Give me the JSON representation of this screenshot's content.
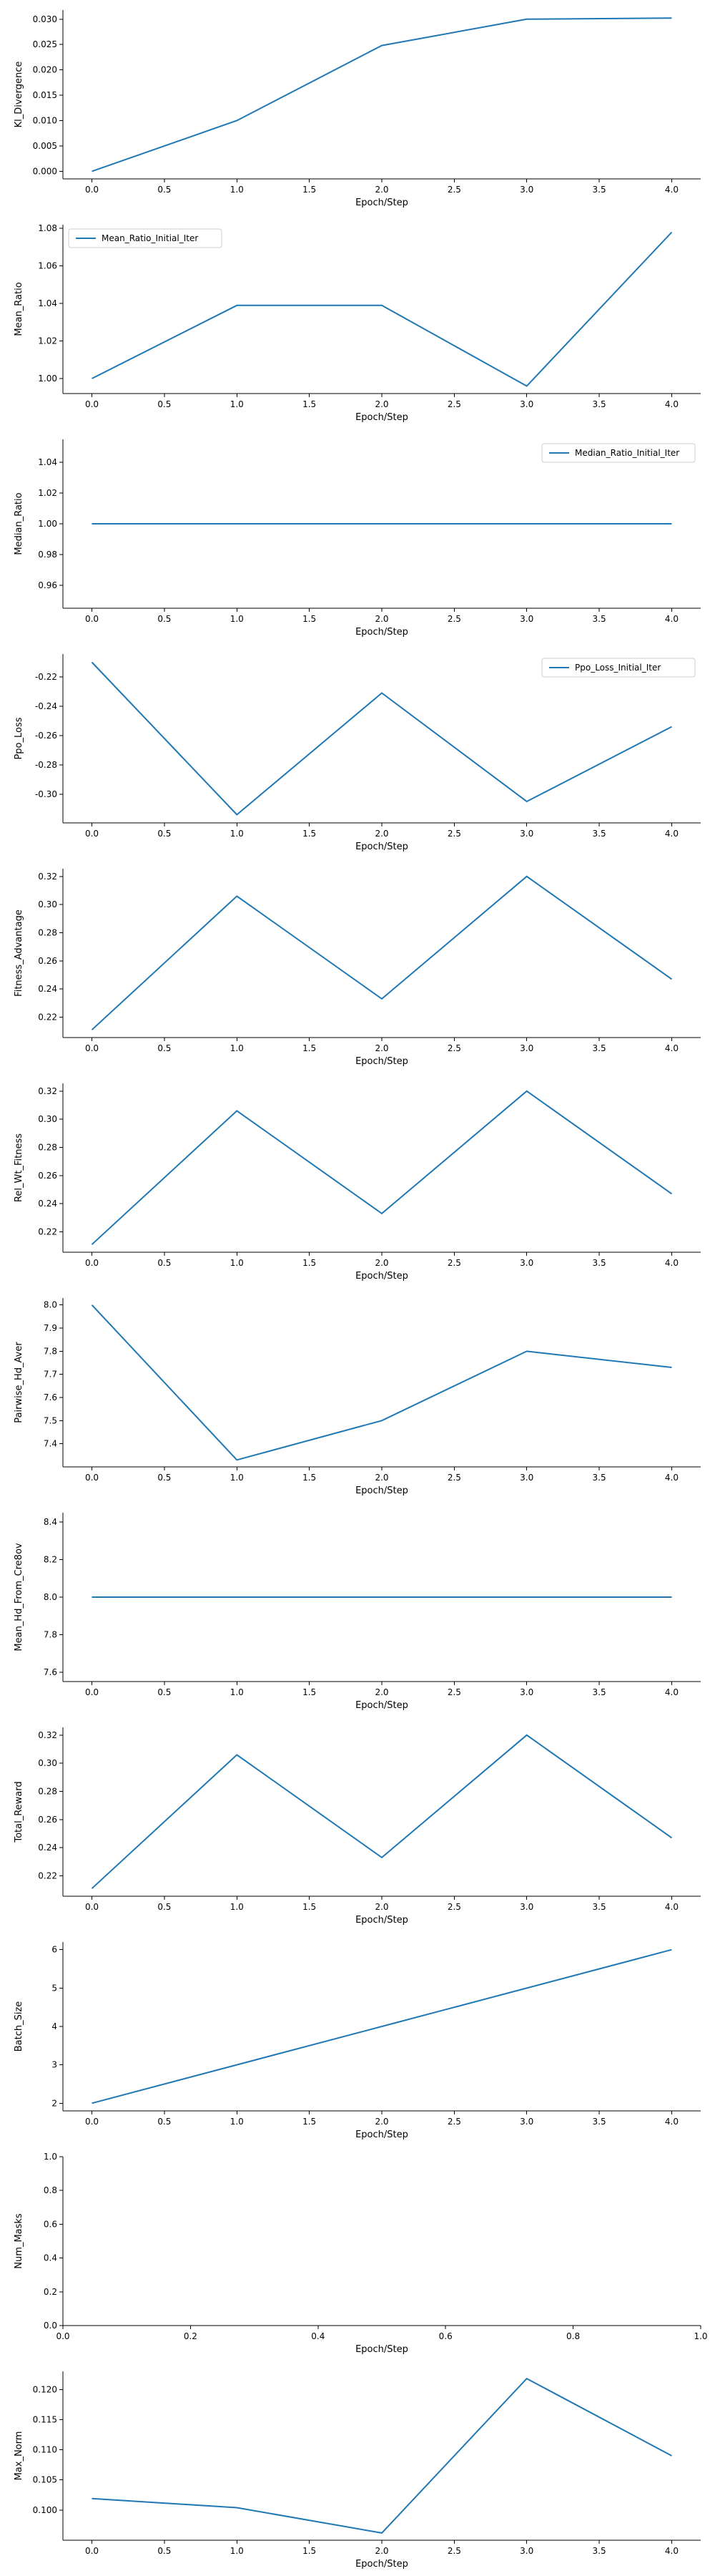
{
  "chart_data": [
    {
      "type": "line",
      "xlabel": "Epoch/Step",
      "ylabel": "Kl_Divergence",
      "x": [
        0,
        1,
        2,
        3,
        4
      ],
      "series": [
        {
          "values": [
            0.0,
            0.01,
            0.0248,
            0.03,
            0.0302
          ]
        }
      ],
      "xticks": [
        "0.0",
        "0.5",
        "1.0",
        "1.5",
        "2.0",
        "2.5",
        "3.0",
        "3.5",
        "4.0"
      ],
      "yticks": [
        "0.000",
        "0.005",
        "0.010",
        "0.015",
        "0.020",
        "0.025",
        "0.030"
      ],
      "xlim": [
        -0.2,
        4.2
      ],
      "ylim": [
        -0.0015,
        0.0318
      ],
      "grid": false
    },
    {
      "type": "line",
      "xlabel": "Epoch/Step",
      "ylabel": "Mean_Ratio",
      "x": [
        0,
        1,
        2,
        3,
        4
      ],
      "series": [
        {
          "name": "Mean_Ratio_Initial_Iter",
          "values": [
            1.0,
            1.039,
            1.039,
            0.996,
            1.078
          ]
        }
      ],
      "legend": "top-left",
      "xticks": [
        "0.0",
        "0.5",
        "1.0",
        "1.5",
        "2.0",
        "2.5",
        "3.0",
        "3.5",
        "4.0"
      ],
      "yticks": [
        "1.00",
        "1.02",
        "1.04",
        "1.06",
        "1.08"
      ],
      "xlim": [
        -0.2,
        4.2
      ],
      "ylim": [
        0.992,
        1.082
      ],
      "grid": false
    },
    {
      "type": "line",
      "xlabel": "Epoch/Step",
      "ylabel": "Median_Ratio",
      "x": [
        0,
        1,
        2,
        3,
        4
      ],
      "series": [
        {
          "name": "Median_Ratio_Initial_Iter",
          "values": [
            1.0,
            1.0,
            1.0,
            1.0,
            1.0
          ]
        }
      ],
      "legend": "top-right",
      "xticks": [
        "0.0",
        "0.5",
        "1.0",
        "1.5",
        "2.0",
        "2.5",
        "3.0",
        "3.5",
        "4.0"
      ],
      "yticks": [
        "0.96",
        "0.98",
        "1.00",
        "1.02",
        "1.04"
      ],
      "xlim": [
        -0.2,
        4.2
      ],
      "ylim": [
        0.945,
        1.055
      ],
      "grid": false
    },
    {
      "type": "line",
      "xlabel": "Epoch/Step",
      "ylabel": "Ppo_Loss",
      "x": [
        0,
        1,
        2,
        3,
        4
      ],
      "series": [
        {
          "name": "Ppo_Loss_Initial_Iter",
          "values": [
            -0.21,
            -0.314,
            -0.231,
            -0.305,
            -0.254
          ]
        }
      ],
      "legend": "top-right",
      "xticks": [
        "0.0",
        "0.5",
        "1.0",
        "1.5",
        "2.0",
        "2.5",
        "3.0",
        "3.5",
        "4.0"
      ],
      "yticks": [
        "-0.22",
        "-0.24",
        "-0.26",
        "-0.28",
        "-0.30"
      ],
      "xlim": [
        -0.2,
        4.2
      ],
      "ylim": [
        -0.3196,
        -0.2044
      ],
      "grid": false
    },
    {
      "type": "line",
      "xlabel": "Epoch/Step",
      "ylabel": "Fitness_Advantage",
      "x": [
        0,
        1,
        2,
        3,
        4
      ],
      "series": [
        {
          "values": [
            0.211,
            0.306,
            0.233,
            0.32,
            0.247
          ]
        }
      ],
      "xticks": [
        "0.0",
        "0.5",
        "1.0",
        "1.5",
        "2.0",
        "2.5",
        "3.0",
        "3.5",
        "4.0"
      ],
      "yticks": [
        "0.22",
        "0.24",
        "0.26",
        "0.28",
        "0.30",
        "0.32"
      ],
      "xlim": [
        -0.2,
        4.2
      ],
      "ylim": [
        0.2055,
        0.3255
      ],
      "grid": false
    },
    {
      "type": "line",
      "xlabel": "Epoch/Step",
      "ylabel": "Rel_Wt_Fitness",
      "x": [
        0,
        1,
        2,
        3,
        4
      ],
      "series": [
        {
          "values": [
            0.211,
            0.306,
            0.233,
            0.32,
            0.247
          ]
        }
      ],
      "xticks": [
        "0.0",
        "0.5",
        "1.0",
        "1.5",
        "2.0",
        "2.5",
        "3.0",
        "3.5",
        "4.0"
      ],
      "yticks": [
        "0.22",
        "0.24",
        "0.26",
        "0.28",
        "0.30",
        "0.32"
      ],
      "xlim": [
        -0.2,
        4.2
      ],
      "ylim": [
        0.2055,
        0.3255
      ],
      "grid": false
    },
    {
      "type": "line",
      "xlabel": "Epoch/Step",
      "ylabel": "Pairwise_Hd_Aver",
      "x": [
        0,
        1,
        2,
        3,
        4
      ],
      "series": [
        {
          "values": [
            8.0,
            7.33,
            7.5,
            7.8,
            7.73
          ]
        }
      ],
      "xticks": [
        "0.0",
        "0.5",
        "1.0",
        "1.5",
        "2.0",
        "2.5",
        "3.0",
        "3.5",
        "4.0"
      ],
      "yticks": [
        "7.4",
        "7.5",
        "7.6",
        "7.7",
        "7.8",
        "7.9",
        "8.0"
      ],
      "xlim": [
        -0.2,
        4.2
      ],
      "ylim": [
        7.3,
        8.03
      ],
      "grid": false
    },
    {
      "type": "line",
      "xlabel": "Epoch/Step",
      "ylabel": "Mean_Hd_From_Cre8ov",
      "x": [
        0,
        1,
        2,
        3,
        4
      ],
      "series": [
        {
          "values": [
            8.0,
            8.0,
            8.0,
            8.0,
            8.0
          ]
        }
      ],
      "xticks": [
        "0.0",
        "0.5",
        "1.0",
        "1.5",
        "2.0",
        "2.5",
        "3.0",
        "3.5",
        "4.0"
      ],
      "yticks": [
        "7.6",
        "7.8",
        "8.0",
        "8.2",
        "8.4"
      ],
      "xlim": [
        -0.2,
        4.2
      ],
      "ylim": [
        7.55,
        8.45
      ],
      "grid": false
    },
    {
      "type": "line",
      "xlabel": "Epoch/Step",
      "ylabel": "Total_Reward",
      "x": [
        0,
        1,
        2,
        3,
        4
      ],
      "series": [
        {
          "values": [
            0.211,
            0.306,
            0.233,
            0.32,
            0.247
          ]
        }
      ],
      "xticks": [
        "0.0",
        "0.5",
        "1.0",
        "1.5",
        "2.0",
        "2.5",
        "3.0",
        "3.5",
        "4.0"
      ],
      "yticks": [
        "0.22",
        "0.24",
        "0.26",
        "0.28",
        "0.30",
        "0.32"
      ],
      "xlim": [
        -0.2,
        4.2
      ],
      "ylim": [
        0.2055,
        0.3255
      ],
      "grid": false
    },
    {
      "type": "line",
      "xlabel": "Epoch/Step",
      "ylabel": "Batch_Size",
      "x": [
        0,
        1,
        2,
        3,
        4
      ],
      "series": [
        {
          "values": [
            2,
            3,
            4,
            5,
            6
          ]
        }
      ],
      "xticks": [
        "0.0",
        "0.5",
        "1.0",
        "1.5",
        "2.0",
        "2.5",
        "3.0",
        "3.5",
        "4.0"
      ],
      "yticks": [
        "2",
        "3",
        "4",
        "5",
        "6"
      ],
      "xlim": [
        -0.2,
        4.2
      ],
      "ylim": [
        1.8,
        6.2
      ],
      "grid": false
    },
    {
      "type": "line",
      "xlabel": "Epoch/Step",
      "ylabel": "Num_Masks",
      "x": [],
      "series": [
        {
          "values": []
        }
      ],
      "xticks": [
        "0.0",
        "0.2",
        "0.4",
        "0.6",
        "0.8",
        "1.0"
      ],
      "yticks": [
        "0.0",
        "0.2",
        "0.4",
        "0.6",
        "0.8",
        "1.0"
      ],
      "xlim": [
        0,
        1
      ],
      "ylim": [
        0,
        1
      ],
      "grid": false
    },
    {
      "type": "line",
      "xlabel": "Epoch/Step",
      "ylabel": "Max_Norm",
      "x": [
        0,
        1,
        2,
        3,
        4
      ],
      "series": [
        {
          "values": [
            0.1019,
            0.1004,
            0.0962,
            0.1218,
            0.109
          ]
        }
      ],
      "xticks": [
        "0.0",
        "0.5",
        "1.0",
        "1.5",
        "2.0",
        "2.5",
        "3.0",
        "3.5",
        "4.0"
      ],
      "yticks": [
        "0.100",
        "0.105",
        "0.110",
        "0.115",
        "0.120"
      ],
      "xlim": [
        -0.2,
        4.2
      ],
      "ylim": [
        0.095,
        0.123
      ],
      "grid": false
    }
  ]
}
